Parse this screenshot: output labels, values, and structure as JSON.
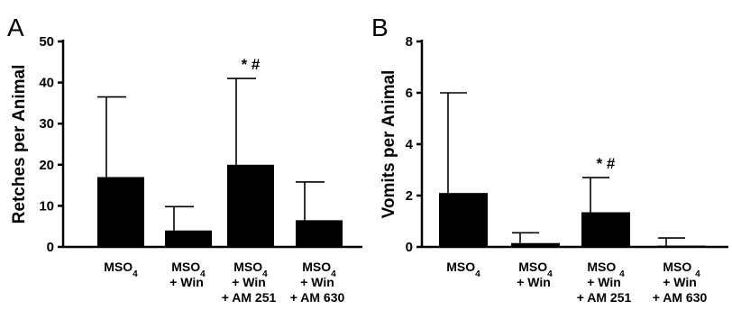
{
  "chart_data": [
    {
      "type": "bar",
      "panel": "A",
      "ylabel": "Retches per Animal",
      "ylim": [
        0,
        50
      ],
      "yticks": [
        "0",
        "10",
        "20",
        "30",
        "40",
        "50"
      ],
      "categories": [
        [
          "MSO4"
        ],
        [
          "MSO4",
          "+ Win"
        ],
        [
          "MSO4",
          "+ Win",
          "+ AM 251"
        ],
        [
          "MSO4",
          "+ Win",
          "+ AM 630"
        ]
      ],
      "values": [
        17,
        4,
        20,
        6.5
      ],
      "error_upper": [
        36.5,
        9.8,
        41,
        15.8
      ],
      "annotations": [
        "",
        "",
        "* #",
        ""
      ],
      "bar_color": "#000000"
    },
    {
      "type": "bar",
      "panel": "B",
      "ylabel": "Vomits per Animal",
      "ylim": [
        0,
        8
      ],
      "yticks": [
        "0",
        "2",
        "4",
        "6",
        "8"
      ],
      "categories": [
        [
          "MSO4"
        ],
        [
          "MSO4",
          "+ Win"
        ],
        [
          "MSO 4",
          "+ Win",
          "+ AM 251"
        ],
        [
          "MSO 4",
          "+ Win",
          "+ AM 630"
        ]
      ],
      "values": [
        2.1,
        0.15,
        1.35,
        0.05
      ],
      "error_upper": [
        6,
        0.55,
        2.7,
        0.35
      ],
      "annotations": [
        "",
        "",
        "* #",
        ""
      ],
      "bar_color": "#000000"
    }
  ]
}
